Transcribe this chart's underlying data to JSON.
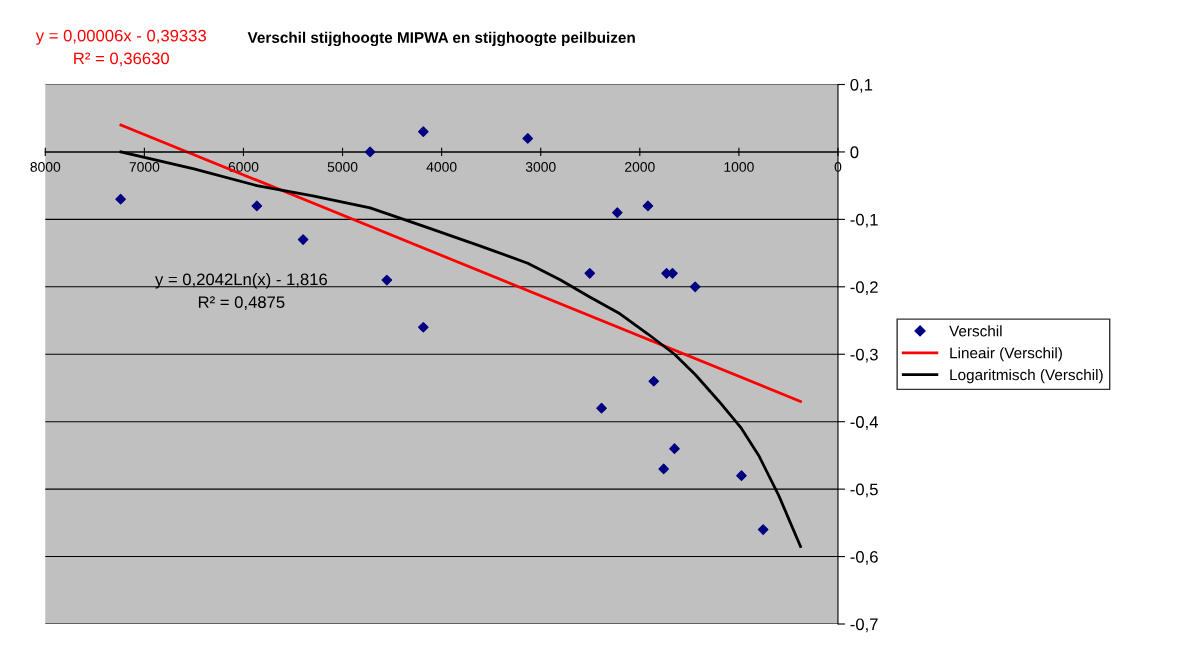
{
  "chart_data": {
    "type": "scatter",
    "title": "Verschil stijghoogte MIPWA en stijghoogte peilbuizen",
    "annotations": [
      "y = 0,00006x - 0,39333\nR² = 0,36630",
      "y = 0,2042Ln(x) - 1,816\nR² = 0,4875"
    ],
    "series": [
      {
        "name": "Verschil",
        "color": "#000080",
        "marker": "diamond",
        "x": [
          7240,
          5865,
          5398,
          4722,
          4185,
          4553,
          4185,
          3131,
          2505,
          2386,
          2227,
          1918,
          1859,
          1730,
          1670,
          1759,
          1650,
          1441,
          974,
          755
        ],
        "values": [
          -0.07,
          -0.08,
          -0.13,
          0,
          0.03,
          -0.19,
          -0.26,
          0.02,
          -0.18,
          -0.38,
          -0.09,
          -0.08,
          -0.34,
          -0.18,
          -0.18,
          -0.47,
          -0.44,
          -0.2,
          -0.48,
          -0.56
        ]
      },
      {
        "name": "Lineair (Verschil)",
        "type": "line",
        "color": "#ff0000",
        "x": [
          7237,
          378
        ],
        "values": [
          0.04,
          -0.37
        ]
      },
      {
        "name": "Logaritmisch (Verschil)",
        "type": "line",
        "color": "#000000",
        "x": [
          7237,
          6500,
          5865,
          5300,
          4722,
          4185,
          3600,
          3131,
          2800,
          2505,
          2200,
          1918,
          1650,
          1441,
          1200,
          974,
          800,
          596,
          480,
          378
        ],
        "values": [
          0,
          -0.025,
          -0.05,
          -0.065,
          -0.083,
          -0.11,
          -0.14,
          -0.165,
          -0.19,
          -0.215,
          -0.24,
          -0.27,
          -0.3,
          -0.33,
          -0.37,
          -0.41,
          -0.45,
          -0.51,
          -0.55,
          -0.585
        ]
      }
    ],
    "xlim": [
      8000,
      0
    ],
    "xticks": [
      8000,
      7000,
      6000,
      5000,
      4000,
      3000,
      2000,
      1000,
      0
    ],
    "ylim": [
      -0.7,
      0.1
    ],
    "yticks": [
      {
        "value": 0.1,
        "label": "0,1"
      },
      0,
      {
        "value": -0.1,
        "label": "-0,1"
      },
      {
        "value": -0.2,
        "label": "-0,2"
      },
      {
        "value": -0.3,
        "label": "-0,3"
      },
      {
        "value": -0.4,
        "label": "-0,4"
      },
      {
        "value": -0.5,
        "label": "-0,5"
      },
      {
        "value": -0.6,
        "label": "-0,6"
      },
      {
        "value": -0.7,
        "label": "-0,7"
      }
    ],
    "grid": "y",
    "legend": "right"
  }
}
